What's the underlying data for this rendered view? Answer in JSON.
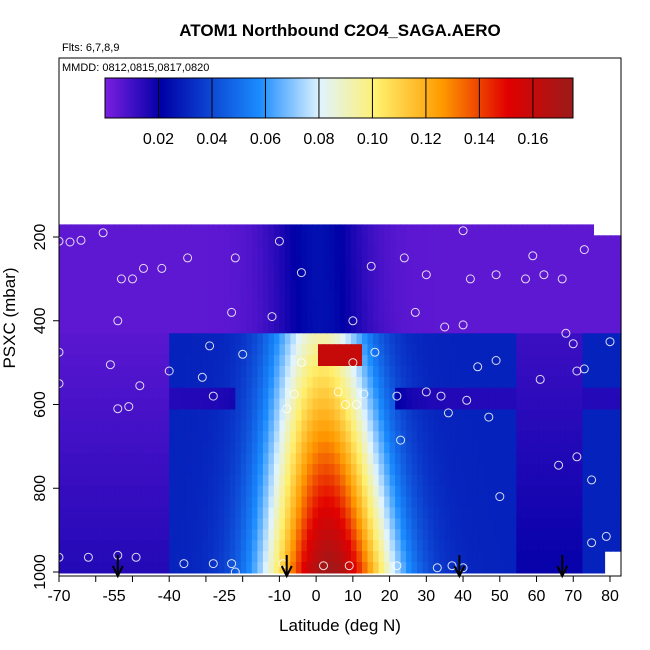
{
  "chart_data": {
    "type": "heatmap",
    "title": "ATOM1 Northbound C2O4_SAGA.AERO",
    "subtitle_flights": "Flts: 6,7,8,9",
    "subtitle_dates": "MMDD: 0812,0815,0817,0820",
    "xlabel": "Latitude (deg N)",
    "ylabel": "PSXC (mbar)",
    "xlim": [
      -70,
      83
    ],
    "ylim": [
      1025,
      125
    ],
    "x_ticks": [
      "-70",
      "-60",
      "-50",
      "-40",
      "-30",
      "-20",
      "-10",
      "0",
      "10",
      "20",
      "30",
      "40",
      "50",
      "60",
      "70",
      "80"
    ],
    "x_tick_values": [
      -70,
      -60,
      -50,
      -40,
      -30,
      -20,
      -10,
      0,
      10,
      20,
      30,
      40,
      50,
      60,
      70,
      80
    ],
    "x_labels": [
      "-70",
      "-55",
      "-40",
      "-25",
      "-10",
      "0",
      "10",
      "20",
      "30",
      "40",
      "50",
      "60",
      "70",
      "80"
    ],
    "x_label_values": [
      -70,
      -55,
      -40,
      -25,
      -10,
      0,
      10,
      20,
      30,
      40,
      50,
      60,
      70,
      80
    ],
    "y_ticks": [
      "200",
      "400",
      "600",
      "800",
      "1000"
    ],
    "y_tick_values": [
      200,
      400,
      600,
      800,
      1000
    ],
    "colorbar": {
      "range": [
        0,
        0.175
      ],
      "tick_labels": [
        "0.02",
        "0.04",
        "0.06",
        "0.08",
        "0.10",
        "0.12",
        "0.14",
        "0.16"
      ],
      "tick_values": [
        0.02,
        0.04,
        0.06,
        0.08,
        0.1,
        0.12,
        0.14,
        0.16
      ],
      "colors": [
        "#7b1fe0",
        "#0000a6",
        "#1a8cff",
        "#e0f4ff",
        "#fff06e",
        "#ff9a00",
        "#e10000",
        "#9b1a1a"
      ]
    },
    "arrows_latitude": [
      -54,
      -8,
      39,
      67
    ],
    "grid": false
  }
}
